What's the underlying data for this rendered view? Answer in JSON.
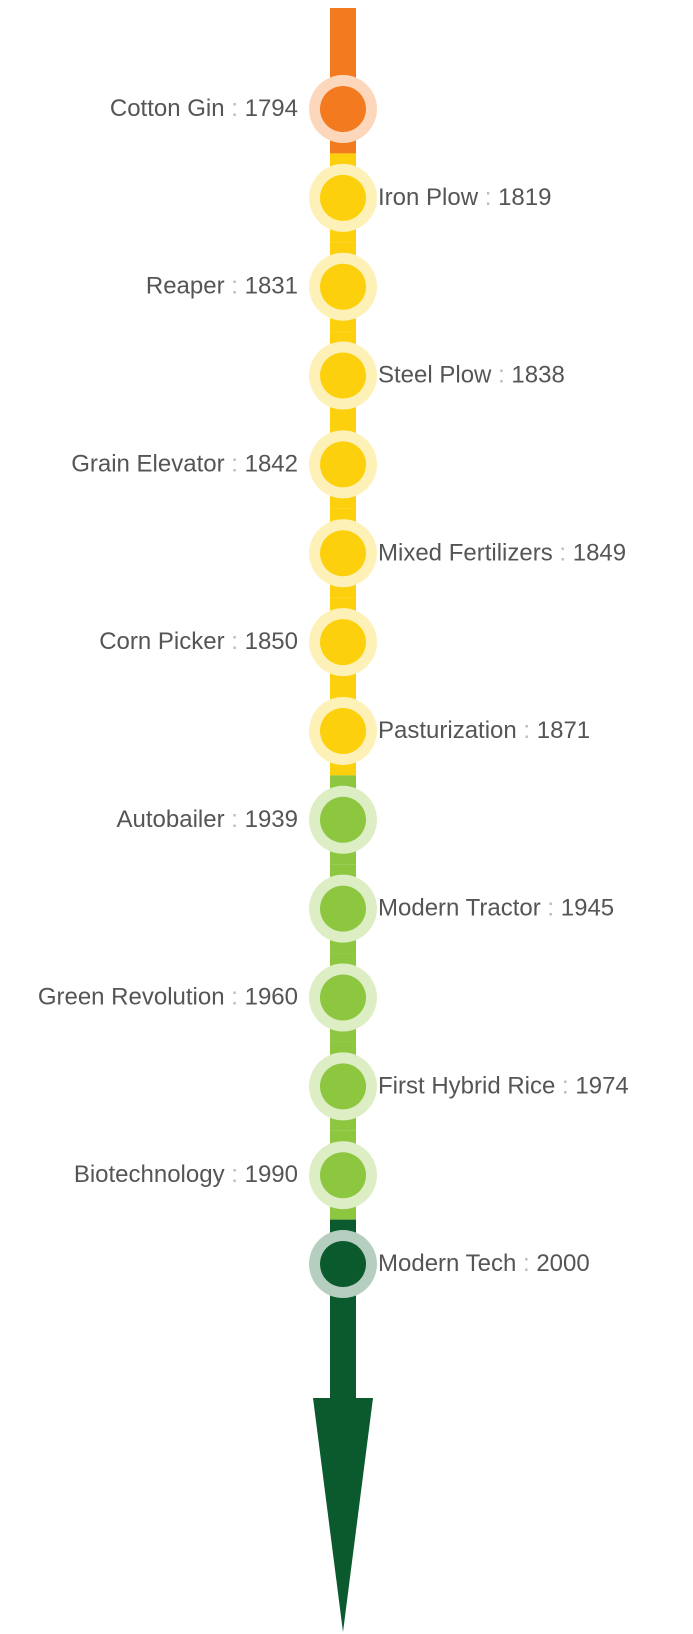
{
  "timeline": {
    "separator": ":",
    "events": [
      {
        "name": "Cotton Gin",
        "year": "1794",
        "color": "#f47a20"
      },
      {
        "name": "Iron Plow",
        "year": "1819",
        "color": "#fdd00e"
      },
      {
        "name": "Reaper",
        "year": "1831",
        "color": "#fdd00e"
      },
      {
        "name": "Steel Plow",
        "year": "1838",
        "color": "#fdd00e"
      },
      {
        "name": "Grain Elevator",
        "year": "1842",
        "color": "#fdd00e"
      },
      {
        "name": "Mixed Fertilizers",
        "year": "1849",
        "color": "#fdd00e"
      },
      {
        "name": "Corn Picker",
        "year": "1850",
        "color": "#fdd00e"
      },
      {
        "name": "Pasturization",
        "year": "1871",
        "color": "#fdd00e"
      },
      {
        "name": "Autobailer",
        "year": "1939",
        "color": "#8dc63f"
      },
      {
        "name": "Modern Tractor",
        "year": "1945",
        "color": "#8dc63f"
      },
      {
        "name": "Green Revolution",
        "year": "1960",
        "color": "#8dc63f"
      },
      {
        "name": "First Hybrid Rice",
        "year": "1974",
        "color": "#8dc63f"
      },
      {
        "name": "Biotechnology",
        "year": "1990",
        "color": "#8dc63f"
      },
      {
        "name": "Modern Tech",
        "year": "2000",
        "color": "#0a5a2e"
      }
    ]
  }
}
